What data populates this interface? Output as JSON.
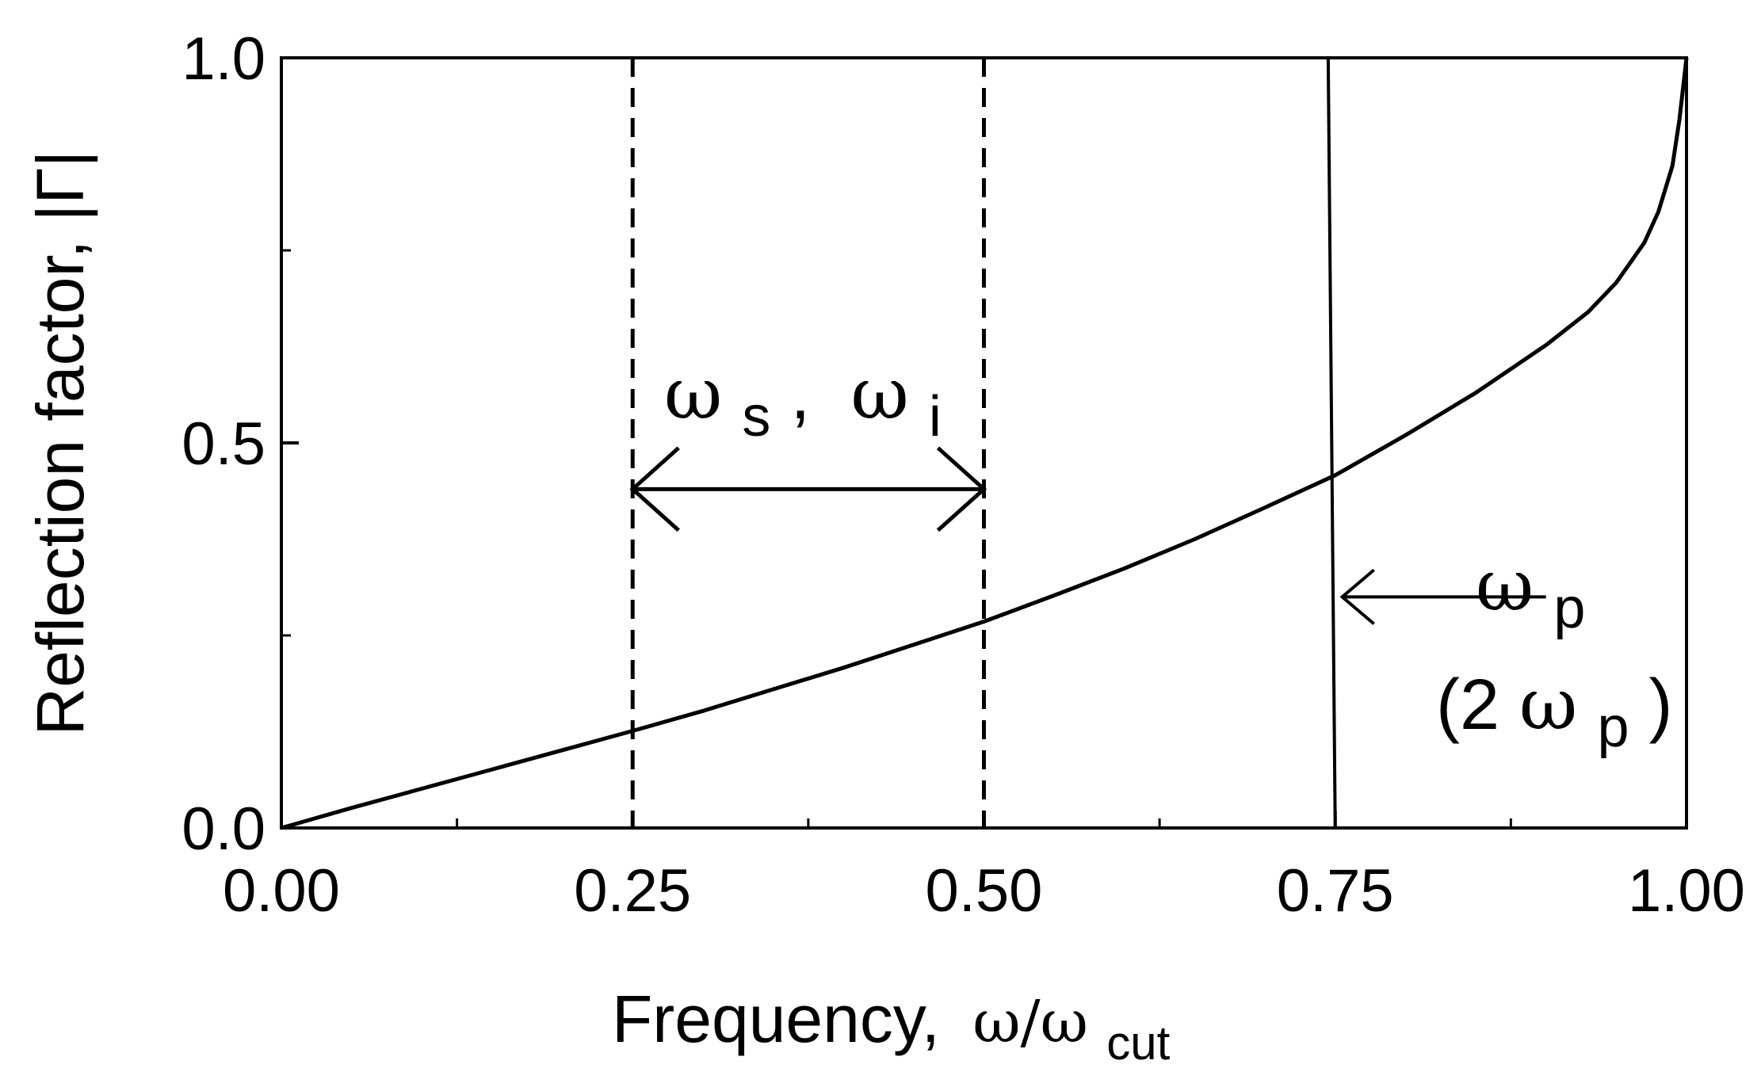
{
  "chart_data": {
    "type": "line",
    "xlabel": "Frequency,",
    "xlabel_symbol": "ω/ω",
    "xlabel_subscript": "cut",
    "ylabel": "Reflection factor, |Γ|",
    "xlim": [
      0,
      1.0
    ],
    "ylim": [
      0,
      1.0
    ],
    "x_ticks": [
      {
        "value": 0.0,
        "label": "0.00"
      },
      {
        "value": 0.25,
        "label": "0.25"
      },
      {
        "value": 0.5,
        "label": "0.50"
      },
      {
        "value": 0.75,
        "label": "0.75"
      },
      {
        "value": 1.0,
        "label": "1.00"
      }
    ],
    "x_minor_ticks": [
      0.125,
      0.375,
      0.625,
      0.875
    ],
    "y_ticks": [
      {
        "value": 0.0,
        "label": "0.0"
      },
      {
        "value": 0.5,
        "label": "0.5"
      },
      {
        "value": 1.0,
        "label": "1.0"
      }
    ],
    "y_minor_ticks": [
      0.25,
      0.75
    ],
    "grid": false,
    "series": [
      {
        "style": "solid",
        "color": "#000000",
        "x": [
          0,
          0.05,
          0.1,
          0.15,
          0.2,
          0.25,
          0.3,
          0.35,
          0.4,
          0.45,
          0.5,
          0.55,
          0.6,
          0.65,
          0.7,
          0.75,
          0.8,
          0.85,
          0.9,
          0.93,
          0.95,
          0.97,
          0.98,
          0.99,
          0.995,
          1.0
        ],
        "y": [
          0,
          0.026,
          0.051,
          0.076,
          0.101,
          0.126,
          0.152,
          0.18,
          0.208,
          0.238,
          0.268,
          0.302,
          0.337,
          0.375,
          0.416,
          0.458,
          0.51,
          0.565,
          0.627,
          0.67,
          0.708,
          0.76,
          0.8,
          0.86,
          0.92,
          1.0
        ]
      }
    ],
    "vertical_lines": [
      {
        "x": 0.25,
        "style": "dashed"
      },
      {
        "x": 0.5,
        "style": "dashed"
      },
      {
        "x": 0.75,
        "style": "solid",
        "x_top": 0.745
      }
    ],
    "annotations": {
      "signal_idler": {
        "w1": "ω",
        "sub1": "s",
        "sep": ",",
        "w2": "ω",
        "sub2": "i"
      },
      "pump": {
        "w": "ω",
        "sub": "p"
      },
      "pump2": {
        "open": "(2",
        "w": "ω",
        "sub": "p",
        "close": ")"
      }
    },
    "double_arrow": {
      "from": 0.25,
      "to": 0.5,
      "y": 0.44
    },
    "pump_arrow": {
      "from": 0.9,
      "to": 0.755,
      "y": 0.3
    }
  }
}
